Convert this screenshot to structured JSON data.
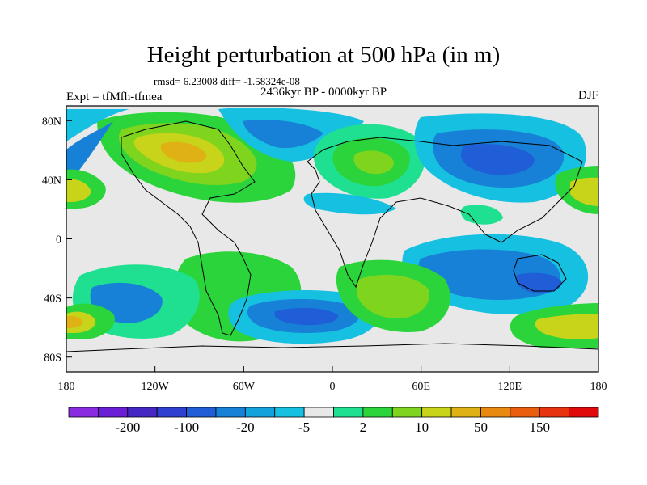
{
  "header": {
    "title": "Height perturbation at 500 hPa (in m)",
    "stats": "rmsd= 6.23008 diff= -1.58324e-08",
    "experiment": "Expt = tfMfh-tfmea",
    "period": "2436kyr BP - 0000kyr BP",
    "season": "DJF"
  },
  "map": {
    "projection": "cylindrical equidistant",
    "lon_range": [
      -180,
      180
    ],
    "lat_range": [
      -90,
      90
    ],
    "x_ticks": [
      {
        "lon": -180,
        "label": "180"
      },
      {
        "lon": -120,
        "label": "120W"
      },
      {
        "lon": -60,
        "label": "60W"
      },
      {
        "lon": 0,
        "label": "0"
      },
      {
        "lon": 60,
        "label": "60E"
      },
      {
        "lon": 120,
        "label": "120E"
      },
      {
        "lon": 180,
        "label": "180"
      }
    ],
    "y_ticks": [
      {
        "lat": 80,
        "label": "80N"
      },
      {
        "lat": 40,
        "label": "40N"
      },
      {
        "lat": 0,
        "label": "0"
      },
      {
        "lat": -40,
        "label": "40S"
      },
      {
        "lat": -80,
        "label": "80S"
      }
    ]
  },
  "colorbar": {
    "colors": [
      "#8a2be2",
      "#6a1fd6",
      "#4527c4",
      "#2f3fcf",
      "#1f5ed6",
      "#1681d6",
      "#14a2dc",
      "#16c0e0",
      "#e8e8e8",
      "#1ee090",
      "#2ad43a",
      "#7fd41e",
      "#c7d41a",
      "#e0b114",
      "#e88a10",
      "#e85e0e",
      "#e8340c",
      "#e00a0a"
    ],
    "labels": [
      {
        "after_index": 1,
        "text": "-200"
      },
      {
        "after_index": 3,
        "text": "-100"
      },
      {
        "after_index": 5,
        "text": "-20"
      },
      {
        "after_index": 7,
        "text": "-5"
      },
      {
        "after_index": 9,
        "text": "2"
      },
      {
        "after_index": 11,
        "text": "10"
      },
      {
        "after_index": 13,
        "text": "50"
      },
      {
        "after_index": 15,
        "text": "150"
      }
    ]
  }
}
